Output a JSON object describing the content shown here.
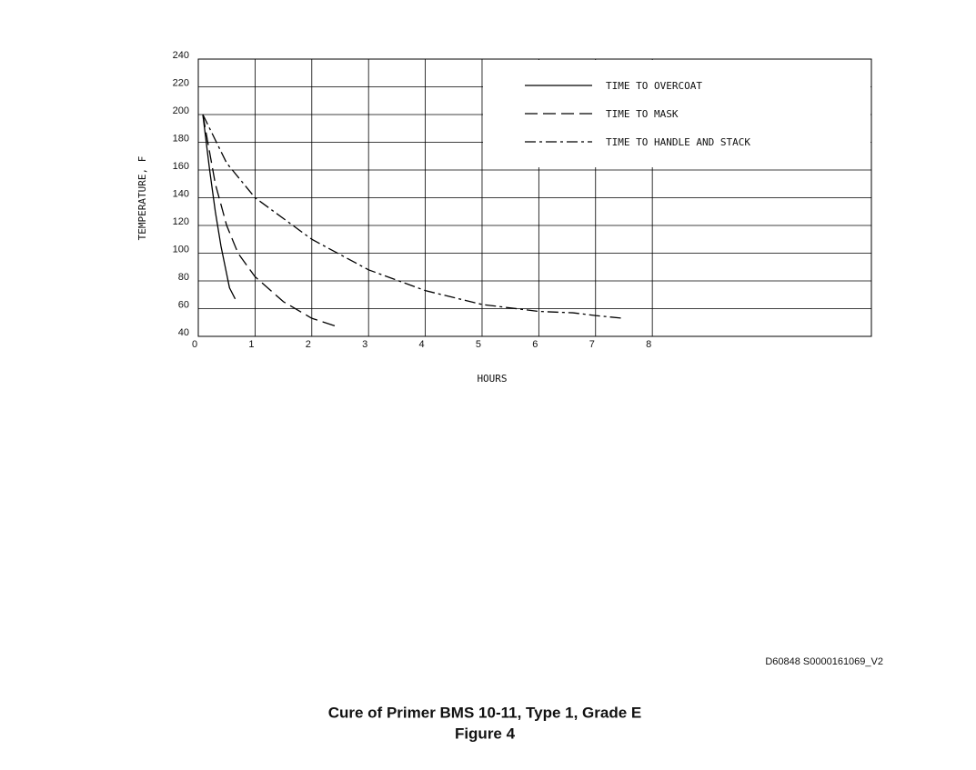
{
  "chart_data": {
    "type": "line",
    "title": "Cure of Primer BMS 10-11, Type 1, Grade E",
    "subtitle": "Figure 4",
    "annotation": "D60848 S0000161069_V2",
    "x_label": "HOURS",
    "y_label": "TEMPERATURE, F",
    "xlim": [
      0,
      11.86
    ],
    "xticks": [
      0,
      1,
      2,
      3,
      4,
      5,
      6,
      7,
      8
    ],
    "ylim": [
      40,
      240
    ],
    "yticks": [
      40,
      60,
      80,
      100,
      120,
      140,
      160,
      180,
      200,
      220,
      240
    ],
    "grid": true,
    "legend": "upper right",
    "series": [
      {
        "name": "TIME TO OVERCOAT",
        "color": "#000000",
        "dash": "solid",
        "x": [
          0.08,
          0.2,
          0.3,
          0.4,
          0.5,
          0.55,
          0.65
        ],
        "values": [
          200,
          160,
          130,
          105,
          85,
          75,
          67
        ]
      },
      {
        "name": "TIME TO MASK",
        "color": "#000000",
        "dash": "dashed",
        "x": [
          0.08,
          0.3,
          0.5,
          0.7,
          1,
          1.5,
          2,
          2.45
        ],
        "values": [
          200,
          150,
          120,
          100,
          83,
          65,
          53,
          47
        ]
      },
      {
        "name": "TIME TO HANDLE AND STACK",
        "color": "#000000",
        "dash": "dashdot",
        "x": [
          0.08,
          0.5,
          1,
          2,
          3,
          4,
          5,
          6,
          6.6,
          7,
          7.5
        ],
        "values": [
          200,
          165,
          140,
          110,
          88,
          73,
          63,
          58,
          57,
          55,
          53
        ]
      }
    ]
  }
}
